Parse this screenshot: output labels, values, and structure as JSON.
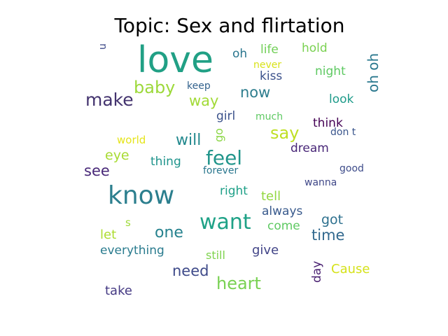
{
  "chart_data": {
    "type": "wordcloud",
    "title": "Topic: Sex and flirtation",
    "words": [
      {
        "text": "love",
        "color": "#21a085",
        "rotated": false
      },
      {
        "text": "know",
        "color": "#2c7f8e",
        "rotated": false
      },
      {
        "text": "feel",
        "color": "#21958b",
        "rotated": false
      },
      {
        "text": "want",
        "color": "#1fa287",
        "rotated": false
      },
      {
        "text": "make",
        "color": "#43336e",
        "rotated": false
      },
      {
        "text": "baby",
        "color": "#9dd93b",
        "rotated": false
      },
      {
        "text": "heart",
        "color": "#78d152",
        "rotated": false
      },
      {
        "text": "say",
        "color": "#bfdf24",
        "rotated": false
      },
      {
        "text": "now",
        "color": "#2e7e8e",
        "rotated": false
      },
      {
        "text": "see",
        "color": "#482878",
        "rotated": false
      },
      {
        "text": "one",
        "color": "#26828e",
        "rotated": false
      },
      {
        "text": "will",
        "color": "#23898e",
        "rotated": false
      },
      {
        "text": "time",
        "color": "#31688e",
        "rotated": false
      },
      {
        "text": "need",
        "color": "#3e4a89",
        "rotated": false
      },
      {
        "text": "way",
        "color": "#a2da37",
        "rotated": false
      },
      {
        "text": "oh",
        "color": "#2a768e",
        "rotated": false
      },
      {
        "text": "life",
        "color": "#71cf57",
        "rotated": false
      },
      {
        "text": "hold",
        "color": "#7ad151",
        "rotated": false
      },
      {
        "text": "night",
        "color": "#5ec962",
        "rotated": false
      },
      {
        "text": "oh oh",
        "color": "#2a788e",
        "rotated": true
      },
      {
        "text": "never",
        "color": "#d8e219",
        "rotated": false
      },
      {
        "text": "kiss",
        "color": "#3b518b",
        "rotated": false
      },
      {
        "text": "keep",
        "color": "#33628d",
        "rotated": false
      },
      {
        "text": "look",
        "color": "#1e9b8a",
        "rotated": false
      },
      {
        "text": "girl",
        "color": "#3b528b",
        "rotated": false
      },
      {
        "text": "much",
        "color": "#5ec962",
        "rotated": false
      },
      {
        "text": "think",
        "color": "#440154",
        "rotated": false
      },
      {
        "text": "don t",
        "color": "#39558c",
        "rotated": false
      },
      {
        "text": "go",
        "color": "#8bd646",
        "rotated": true
      },
      {
        "text": "dream",
        "color": "#482677",
        "rotated": false
      },
      {
        "text": "world",
        "color": "#e5e419",
        "rotated": false
      },
      {
        "text": "eye",
        "color": "#a8db34",
        "rotated": false
      },
      {
        "text": "thing",
        "color": "#1f948c",
        "rotated": false
      },
      {
        "text": "forever",
        "color": "#2a778e",
        "rotated": false
      },
      {
        "text": "good",
        "color": "#3e4c8a",
        "rotated": false
      },
      {
        "text": "wanna",
        "color": "#3f4788",
        "rotated": false
      },
      {
        "text": "right",
        "color": "#1fa088",
        "rotated": false
      },
      {
        "text": "tell",
        "color": "#93d741",
        "rotated": false
      },
      {
        "text": "always",
        "color": "#38598c",
        "rotated": false
      },
      {
        "text": "got",
        "color": "#2d708e",
        "rotated": false
      },
      {
        "text": "let",
        "color": "#addc30",
        "rotated": false
      },
      {
        "text": "s",
        "color": "#9fda3a",
        "rotated": false
      },
      {
        "text": "come",
        "color": "#5ec962",
        "rotated": false
      },
      {
        "text": "everything",
        "color": "#297b8e",
        "rotated": false
      },
      {
        "text": "still",
        "color": "#7fd34e",
        "rotated": false
      },
      {
        "text": "give",
        "color": "#414487",
        "rotated": false
      },
      {
        "text": "day",
        "color": "#481f70",
        "rotated": true
      },
      {
        "text": "Cause",
        "color": "#d5e21a",
        "rotated": false
      },
      {
        "text": "take",
        "color": "#443983",
        "rotated": false
      },
      {
        "text": "u",
        "color": "#3e4a89",
        "rotated": true
      }
    ]
  }
}
